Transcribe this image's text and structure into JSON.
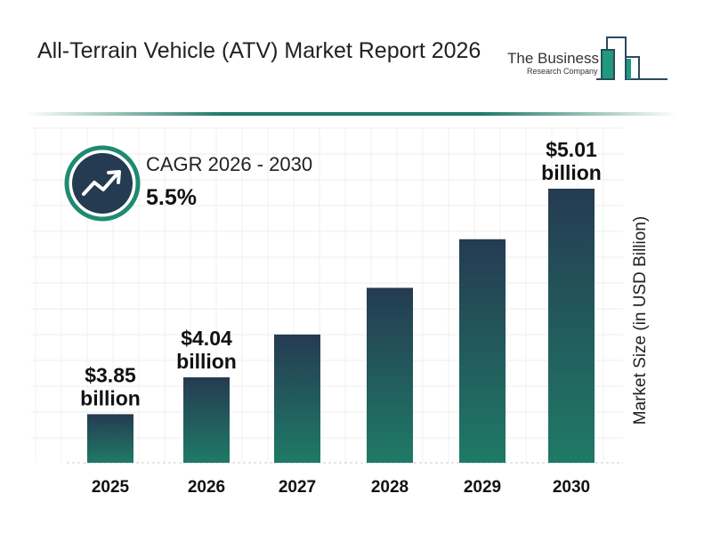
{
  "header": {
    "title": "All-Terrain Vehicle (ATV) Market Report 2026"
  },
  "logo": {
    "line1": "The Business",
    "line2": "Research Company"
  },
  "cagr": {
    "label": "CAGR 2026 - 2030",
    "value": "5.5%",
    "icon": "trend-up-icon"
  },
  "colors": {
    "bar_top": "#253b52",
    "bar_bottom": "#1f7a66",
    "accent": "#1f8a70"
  },
  "chart_data": {
    "type": "bar",
    "categories": [
      "2025",
      "2026",
      "2027",
      "2028",
      "2029",
      "2030"
    ],
    "values": [
      3.85,
      4.04,
      4.26,
      4.5,
      4.75,
      5.01
    ],
    "data_labels": [
      {
        "index": 0,
        "line1": "$3.85",
        "line2": "billion"
      },
      {
        "index": 1,
        "line1": "$4.04",
        "line2": "billion"
      },
      {
        "index": 5,
        "line1": "$5.01",
        "line2": "billion"
      }
    ],
    "title": "",
    "xlabel": "",
    "ylabel": "Market Size (in USD Billion)",
    "grid": true
  }
}
